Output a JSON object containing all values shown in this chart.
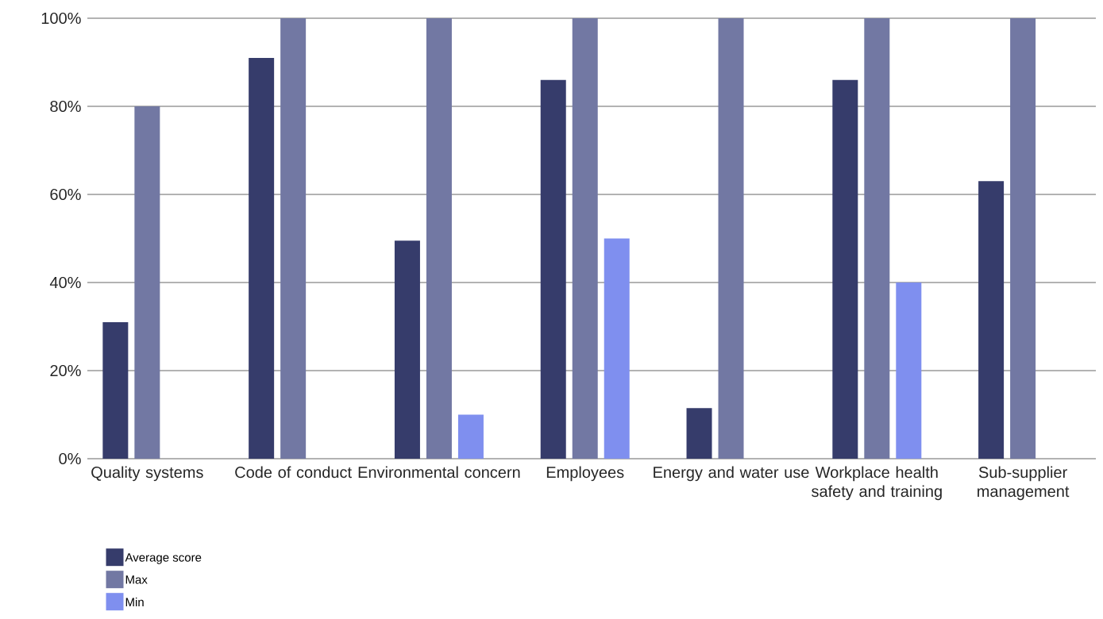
{
  "chart_data": {
    "type": "bar",
    "categories": [
      "Quality systems",
      "Code of conduct",
      "Environmental concern",
      "Employees",
      "Energy and water use",
      "Workplace health safety and training",
      "Sub-supplier management"
    ],
    "series": [
      {
        "name": "Average score",
        "color": "#363c6b",
        "values": [
          31,
          91,
          49.5,
          86,
          11.5,
          86,
          63
        ]
      },
      {
        "name": "Max",
        "color": "#7278a3",
        "values": [
          80,
          100,
          100,
          100,
          100,
          100,
          100
        ]
      },
      {
        "name": "Min",
        "color": "#7f8fef",
        "values": [
          null,
          null,
          10,
          50,
          null,
          40,
          null
        ]
      }
    ],
    "ylim": [
      0,
      100
    ],
    "yticks": [
      {
        "value": 0,
        "label": "0%"
      },
      {
        "value": 20,
        "label": "20%"
      },
      {
        "value": 40,
        "label": "40%"
      },
      {
        "value": 60,
        "label": "60%"
      },
      {
        "value": 80,
        "label": "80%"
      },
      {
        "value": 100,
        "label": "100%"
      }
    ],
    "grid": "y",
    "legend": "bottom left"
  }
}
